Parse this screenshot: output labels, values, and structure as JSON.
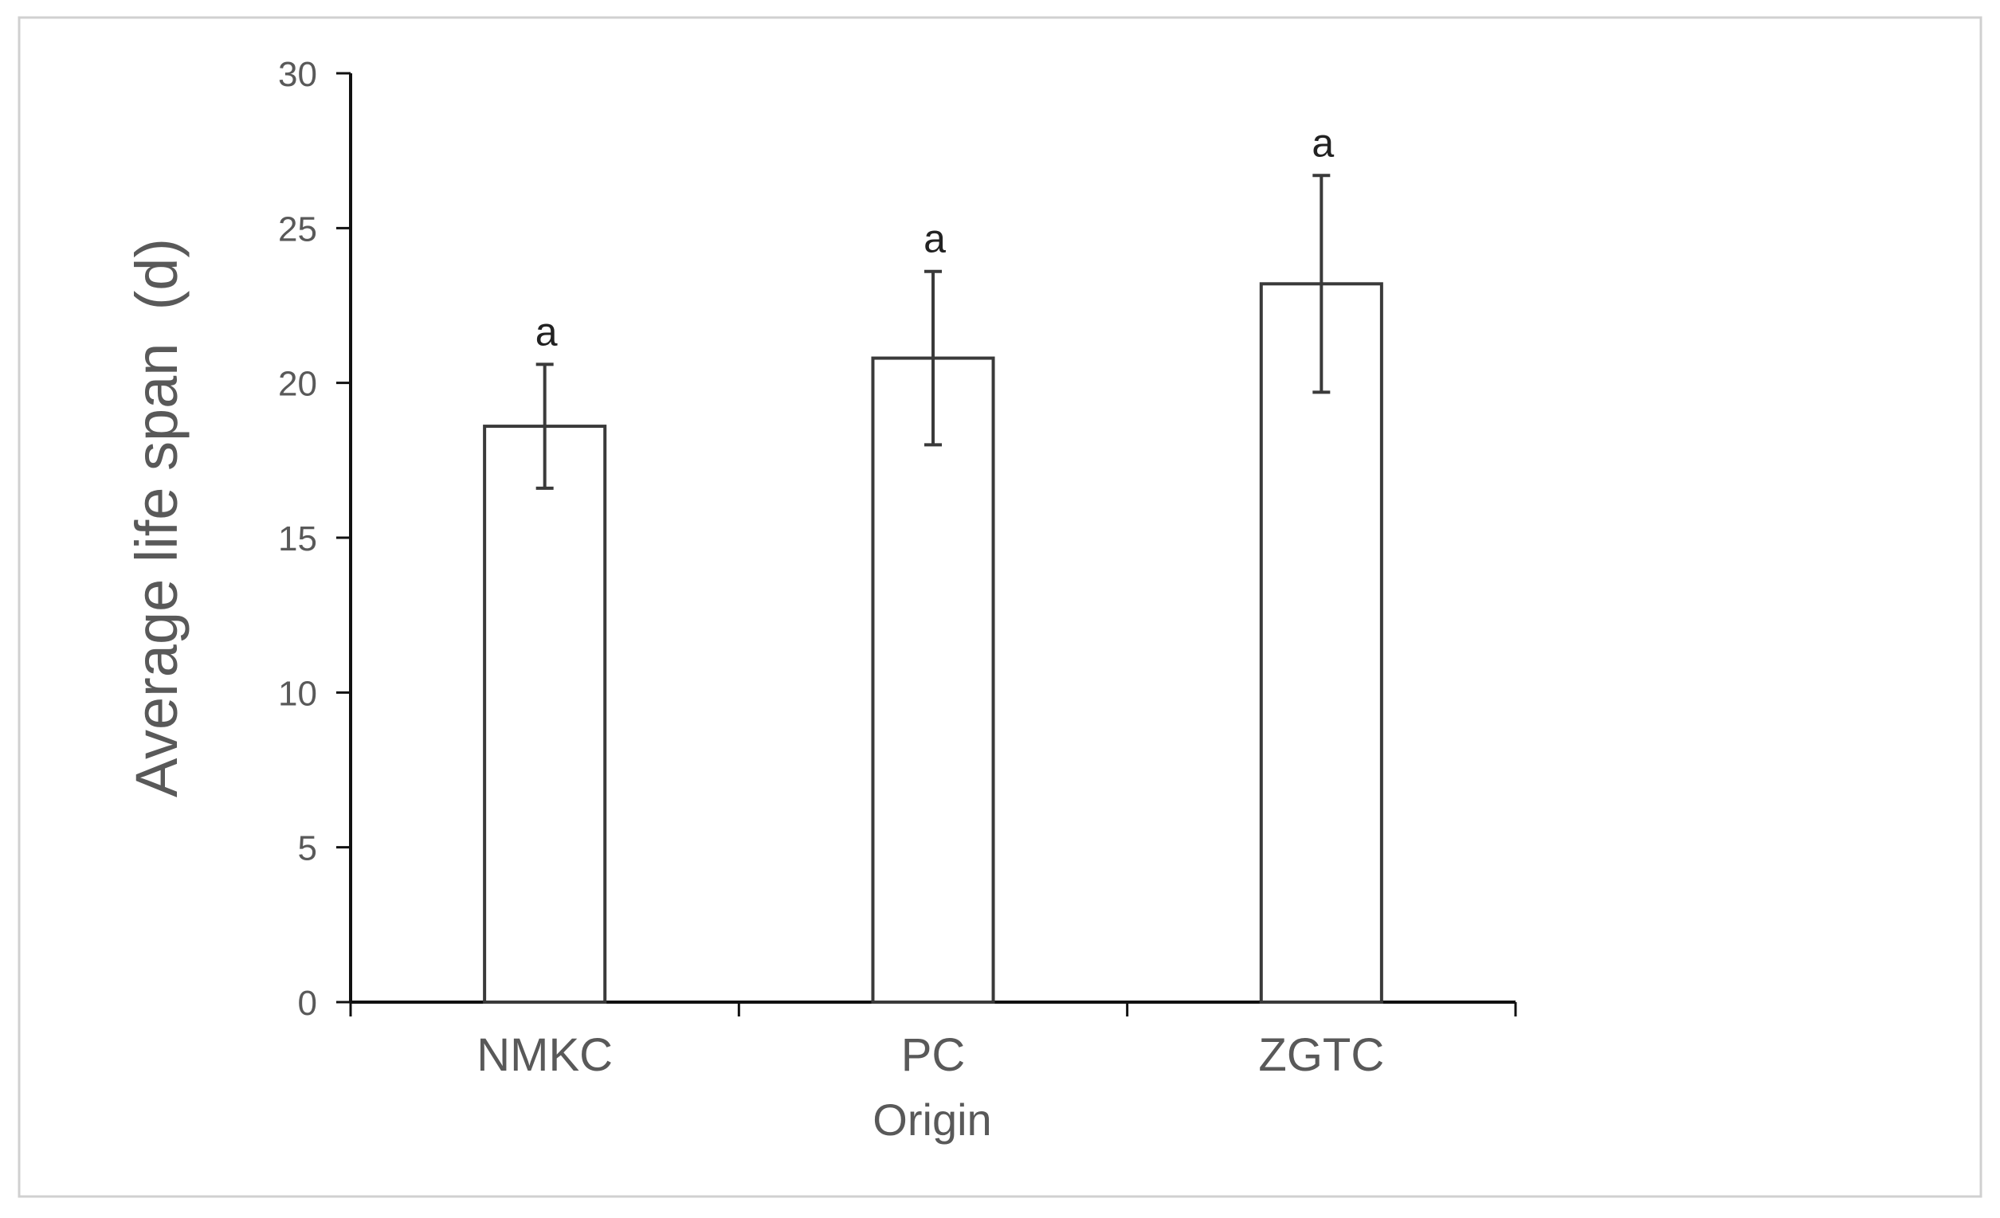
{
  "chart_data": {
    "type": "bar",
    "title": "",
    "xlabel": "Origin",
    "ylabel": "Average life span  (d)",
    "categories": [
      "NMKC",
      "PC",
      "ZGTC"
    ],
    "values": [
      18.6,
      20.8,
      23.2
    ],
    "error": [
      2.0,
      2.8,
      3.5
    ],
    "significance_labels": [
      "a",
      "a",
      "a"
    ],
    "ylim": [
      0,
      30
    ],
    "yticks": [
      0,
      5,
      10,
      15,
      20,
      25,
      30
    ],
    "grid": false,
    "legend": "none",
    "colors": {
      "bar_fill": "#ffffff",
      "bar_stroke": "#3a3a3a",
      "axis": "#111111",
      "text": "#595959",
      "frame": "#d0d0d0"
    }
  }
}
